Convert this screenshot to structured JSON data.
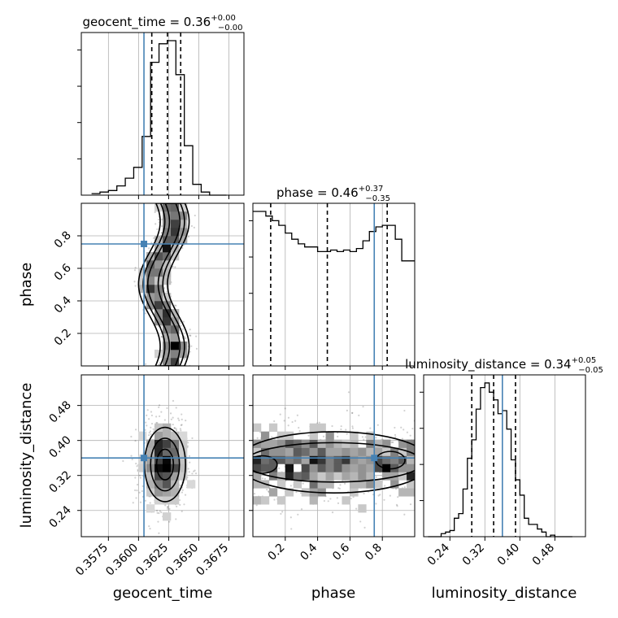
{
  "colors": {
    "truth": "#4682b4",
    "line": "#000000",
    "grid": "#b0b0b0"
  },
  "chart_data": {
    "type": "corner",
    "parameters": [
      "geocent_time",
      "phase",
      "luminosity_distance"
    ],
    "truths": {
      "geocent_time": 0.36045,
      "phase": 0.75,
      "luminosity_distance": 0.36
    },
    "titles": [
      {
        "param": "geocent_time",
        "main": "geocent_time = 0.36",
        "plus": "+0.00",
        "minus": "−0.00"
      },
      {
        "param": "phase",
        "main": "phase = 0.46",
        "plus": "+0.37",
        "minus": "−0.35"
      },
      {
        "param": "luminosity_distance",
        "main": "luminosity_distance = 0.34",
        "plus": "+0.05",
        "minus": "−0.05"
      }
    ],
    "ranges": {
      "geocent_time": [
        0.35525,
        0.36875
      ],
      "phase": [
        0.0,
        1.0
      ],
      "luminosity_distance": [
        0.18,
        0.55
      ]
    },
    "ticks": {
      "geocent_time": [
        "0.3575",
        "0.3600",
        "0.3625",
        "0.3650",
        "0.3675"
      ],
      "phase": [
        "0.2",
        "0.4",
        "0.6",
        "0.8"
      ],
      "luminosity_distance": [
        "0.24",
        "0.32",
        "0.40",
        "0.48"
      ]
    },
    "tick_values": {
      "geocent_time": [
        0.3575,
        0.36,
        0.3625,
        0.365,
        0.3675
      ],
      "phase": [
        0.2,
        0.4,
        0.6,
        0.8
      ],
      "luminosity_distance": [
        0.24,
        0.32,
        0.4,
        0.48
      ]
    },
    "quantile_lines": {
      "geocent_time": [
        0.3611,
        0.3624,
        0.3635
      ],
      "phase": [
        0.11,
        0.46,
        0.83
      ],
      "luminosity_distance": [
        0.29,
        0.34,
        0.39
      ]
    },
    "histograms": {
      "geocent_time": {
        "edges": [
          0.3561,
          0.3568,
          0.3575,
          0.3582,
          0.3589,
          0.3596,
          0.3603,
          0.361,
          0.3617,
          0.3624,
          0.3631,
          0.3638,
          0.3645,
          0.3652,
          0.3659,
          0.3666,
          0.3673
        ],
        "counts": [
          1,
          2,
          3,
          6,
          11,
          18,
          38,
          86,
          98,
          100,
          78,
          32,
          7,
          2,
          0,
          0
        ]
      },
      "phase": {
        "edges": [
          0.0,
          0.04,
          0.08,
          0.12,
          0.16,
          0.2,
          0.24,
          0.28,
          0.32,
          0.36,
          0.4,
          0.44,
          0.48,
          0.52,
          0.56,
          0.6,
          0.64,
          0.68,
          0.72,
          0.76,
          0.8,
          0.84,
          0.88,
          0.92,
          0.96,
          1.0
        ],
        "counts": [
          100,
          100,
          97,
          94,
          91,
          86,
          82,
          79,
          77,
          77,
          74,
          74,
          75,
          74,
          75,
          74,
          76,
          81,
          87,
          90,
          91,
          91,
          82,
          68,
          68
        ]
      },
      "luminosity_distance": {
        "edges": [
          0.19,
          0.2,
          0.21,
          0.22,
          0.23,
          0.24,
          0.25,
          0.26,
          0.27,
          0.28,
          0.29,
          0.3,
          0.31,
          0.32,
          0.33,
          0.34,
          0.35,
          0.36,
          0.37,
          0.38,
          0.39,
          0.4,
          0.41,
          0.42,
          0.43,
          0.44,
          0.45,
          0.46,
          0.47,
          0.48,
          0.49,
          0.5,
          0.51,
          0.52
        ],
        "counts": [
          0,
          0,
          0,
          2,
          3,
          4,
          12,
          15,
          31,
          51,
          63,
          83,
          97,
          100,
          94,
          89,
          80,
          82,
          70,
          50,
          37,
          27,
          12,
          8,
          8,
          5,
          3,
          0,
          1,
          0,
          0,
          0,
          0
        ]
      }
    },
    "joint_modes": [
      {
        "x": "geocent_time",
        "y": "phase",
        "points": [
          [
            0.3623,
            0.78
          ],
          [
            0.3618,
            0.58
          ],
          [
            0.3627,
            0.22
          ],
          [
            0.3617,
            0.09
          ],
          [
            0.3606,
            0.45
          ],
          [
            0.3607,
            0.98
          ]
        ]
      },
      {
        "x": "geocent_time",
        "y": "luminosity_distance",
        "points": [
          [
            0.3623,
            0.34
          ]
        ]
      },
      {
        "x": "phase",
        "y": "luminosity_distance",
        "points": [
          [
            0.06,
            0.34
          ],
          [
            0.83,
            0.355
          ],
          [
            0.47,
            0.355
          ]
        ]
      }
    ]
  }
}
